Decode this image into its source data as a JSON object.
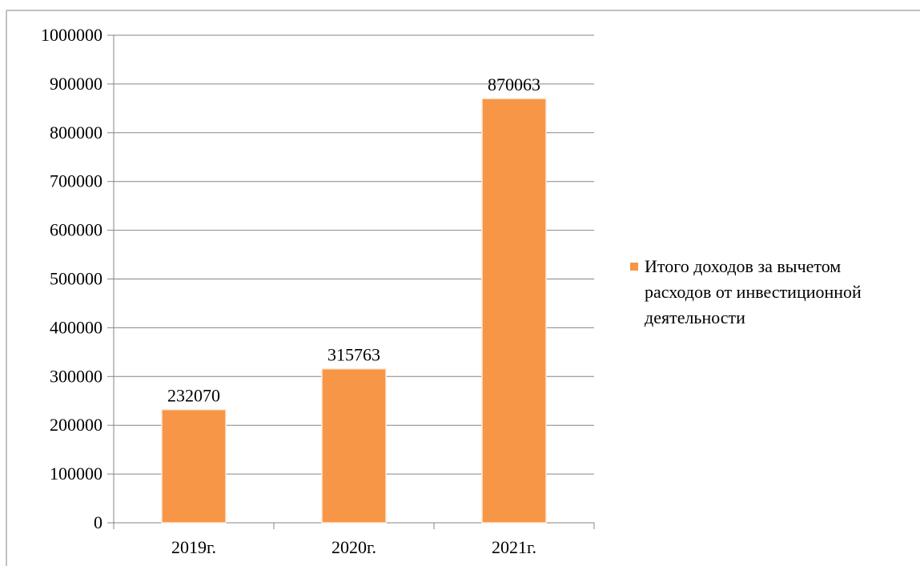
{
  "chart_data": {
    "type": "bar",
    "categories": [
      "2019г.",
      "2020г.",
      "2021г."
    ],
    "series": [
      {
        "name": "Итого доходов за вычетом расходов от инвестиционной деятельности",
        "values": [
          232070,
          315763,
          870063
        ]
      }
    ],
    "data_labels": [
      "232070",
      "315763",
      "870063"
    ],
    "y_ticks": [
      "0",
      "100000",
      "200000",
      "300000",
      "400000",
      "500000",
      "600000",
      "700000",
      "800000",
      "900000",
      "1000000"
    ],
    "ylim": [
      0,
      1000000
    ],
    "grid": true,
    "legend_position": "right",
    "legend_lines": [
      "Итого доходов за вычетом",
      "расходов от инвестиционной",
      "деятельности"
    ]
  },
  "colors": {
    "bar": "#F79646",
    "grid": "#868686",
    "frame": "#868686"
  }
}
